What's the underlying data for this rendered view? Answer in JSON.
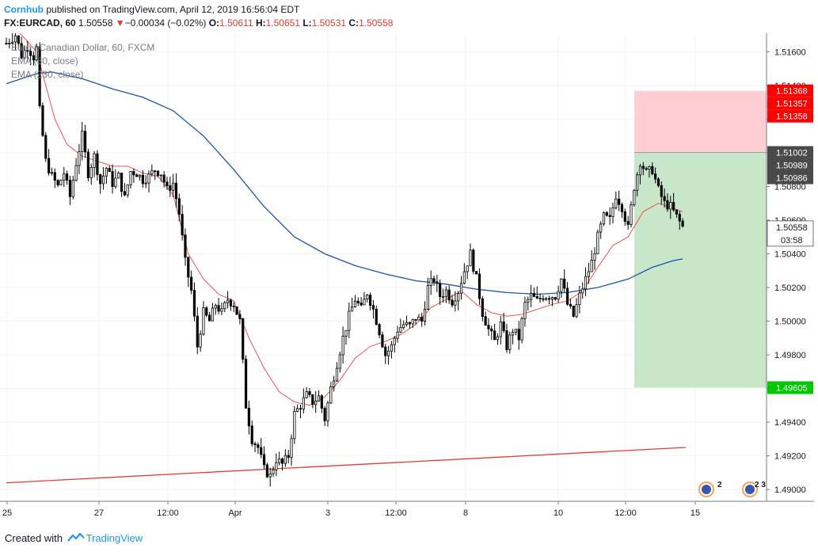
{
  "header": {
    "brand": "Cornhub",
    "published_text": "published on TradingView.com, April 12, 2019 16:56:04 EDT",
    "symbol": "FX:EURCAD, 60",
    "last": "1.50558",
    "change_arrow": "▼",
    "change": "−0.00034 (−0.02%)",
    "o_label": "O:",
    "o_value": "1.50611",
    "h_label": "H:",
    "h_value": "1.50651",
    "l_label": "L:",
    "l_value": "1.50531",
    "c_label": "C:",
    "c_value": "1.50558"
  },
  "legend": {
    "instrument": "Euro / Canadian Dollar, 60, FXCM",
    "ema_fast": "EMA (30, close)",
    "ema_slow": "EMA (230, close)"
  },
  "footer": {
    "created_with": "Created with",
    "tradingview": "TradingView"
  },
  "colors": {
    "candle": "#000000",
    "ema_fast": "#ef5350",
    "ema_slow": "#1e53a5",
    "trendline": "#e53935",
    "stop_zone": "#ffcdd2",
    "target_zone": "#c8e6c9",
    "price_tag_red": "#ff0000",
    "price_tag_green": "#00c800",
    "price_tag_dark": "#4a4a4a"
  },
  "chart_data": {
    "type": "candlestick",
    "y_ticks": [
      "1.51600",
      "1.51400",
      "1.51200",
      "1.51000",
      "1.50800",
      "1.50600",
      "1.50400",
      "1.50200",
      "1.50000",
      "1.49800",
      "1.49600",
      "1.49400",
      "1.49200",
      "1.49000"
    ],
    "x_ticks": [
      "25",
      "27",
      "12:00",
      "Apr",
      "3",
      "12:00",
      "8",
      "10",
      "12:00",
      "15"
    ],
    "ylim": [
      1.4893,
      1.5171
    ],
    "price_tags": {
      "stop_1": "1.51368",
      "stop_2": "1.51357",
      "stop_3": "1.51358",
      "entry_1": "1.51002",
      "entry_2": "1.50989",
      "entry_3": "1.50986",
      "last": "1.50558",
      "countdown": "03:58",
      "target": "1.49605"
    },
    "position": {
      "entry": 1.51002,
      "stop": 1.51368,
      "target": 1.49605
    },
    "price_path": [
      [
        0,
        1.5165
      ],
      [
        3,
        1.517
      ],
      [
        5,
        1.5158
      ],
      [
        7,
        1.5163
      ],
      [
        9,
        1.5157
      ],
      [
        10,
        1.5162
      ],
      [
        11,
        1.5125
      ],
      [
        13,
        1.5095
      ],
      [
        15,
        1.5086
      ],
      [
        17,
        1.508
      ],
      [
        19,
        1.5088
      ],
      [
        21,
        1.5074
      ],
      [
        23,
        1.5094
      ],
      [
        25,
        1.511
      ],
      [
        27,
        1.5088
      ],
      [
        29,
        1.5098
      ],
      [
        31,
        1.5082
      ],
      [
        33,
        1.5091
      ],
      [
        35,
        1.5082
      ],
      [
        37,
        1.5086
      ],
      [
        39,
        1.5073
      ],
      [
        41,
        1.5089
      ],
      [
        43,
        1.5088
      ],
      [
        45,
        1.5084
      ],
      [
        47,
        1.5086
      ],
      [
        49,
        1.509
      ],
      [
        51,
        1.5088
      ],
      [
        53,
        1.5078
      ],
      [
        55,
        1.5082
      ],
      [
        57,
        1.5064
      ],
      [
        59,
        1.5035
      ],
      [
        61,
        1.5018
      ],
      [
        63,
        1.4985
      ],
      [
        65,
        1.5005
      ],
      [
        67,
        1.5
      ],
      [
        69,
        1.501
      ],
      [
        71,
        1.5005
      ],
      [
        73,
        1.5013
      ],
      [
        75,
        1.501
      ],
      [
        77,
        1.5
      ],
      [
        79,
        1.495
      ],
      [
        81,
        1.493
      ],
      [
        83,
        1.4925
      ],
      [
        85,
        1.4912
      ],
      [
        87,
        1.4908
      ],
      [
        89,
        1.4918
      ],
      [
        91,
        1.4915
      ],
      [
        93,
        1.492
      ],
      [
        95,
        1.4945
      ],
      [
        97,
        1.495
      ],
      [
        99,
        1.4956
      ],
      [
        101,
        1.4952
      ],
      [
        103,
        1.4955
      ],
      [
        105,
        1.4942
      ],
      [
        107,
        1.496
      ],
      [
        109,
        1.4975
      ],
      [
        111,
        1.499
      ],
      [
        113,
        1.5003
      ],
      [
        115,
        1.5013
      ],
      [
        117,
        1.5007
      ],
      [
        119,
        1.5017
      ],
      [
        121,
        1.5007
      ],
      [
        123,
        1.4994
      ],
      [
        125,
        1.498
      ],
      [
        127,
        1.4985
      ],
      [
        129,
        1.4995
      ],
      [
        131,
        1.4998
      ],
      [
        133,
        1.4997
      ],
      [
        135,
        1.5002
      ],
      [
        137,
        1.5
      ],
      [
        139,
        1.502
      ],
      [
        141,
        1.5025
      ],
      [
        143,
        1.5015
      ],
      [
        145,
        1.5018
      ],
      [
        147,
        1.5012
      ],
      [
        149,
        1.5018
      ],
      [
        151,
        1.503
      ],
      [
        153,
        1.504
      ],
      [
        155,
        1.5025
      ],
      [
        157,
        1.5005
      ],
      [
        159,
        1.4995
      ],
      [
        161,
        1.4988
      ],
      [
        163,
        1.4998
      ],
      [
        165,
        1.4985
      ],
      [
        167,
        1.4995
      ],
      [
        169,
        1.499
      ],
      [
        171,
        1.501
      ],
      [
        173,
        1.5015
      ],
      [
        175,
        1.5012
      ],
      [
        177,
        1.5015
      ],
      [
        179,
        1.5015
      ],
      [
        181,
        1.5015
      ],
      [
        183,
        1.5025
      ],
      [
        185,
        1.501
      ],
      [
        187,
        1.5003
      ],
      [
        189,
        1.5015
      ],
      [
        191,
        1.5025
      ],
      [
        193,
        1.5035
      ],
      [
        195,
        1.505
      ],
      [
        197,
        1.5062
      ],
      [
        199,
        1.506
      ],
      [
        201,
        1.5075
      ],
      [
        203,
        1.5068
      ],
      [
        205,
        1.5055
      ],
      [
        207,
        1.508
      ],
      [
        209,
        1.5095
      ],
      [
        211,
        1.5088
      ],
      [
        213,
        1.509
      ],
      [
        215,
        1.5078
      ],
      [
        217,
        1.507
      ],
      [
        219,
        1.5068
      ],
      [
        221,
        1.5062
      ],
      [
        223,
        1.5056
      ]
    ],
    "ema_fast_path": [
      [
        0,
        1.518
      ],
      [
        10,
        1.516
      ],
      [
        16,
        1.512
      ],
      [
        20,
        1.5105
      ],
      [
        25,
        1.5098
      ],
      [
        30,
        1.5095
      ],
      [
        35,
        1.5092
      ],
      [
        40,
        1.5092
      ],
      [
        45,
        1.5088
      ],
      [
        50,
        1.5086
      ],
      [
        55,
        1.5075
      ],
      [
        60,
        1.504
      ],
      [
        65,
        1.5025
      ],
      [
        70,
        1.5016
      ],
      [
        75,
        1.5012
      ],
      [
        80,
        1.499
      ],
      [
        85,
        1.4972
      ],
      [
        90,
        1.4958
      ],
      [
        95,
        1.4952
      ],
      [
        100,
        1.495
      ],
      [
        105,
        1.4955
      ],
      [
        110,
        1.4965
      ],
      [
        115,
        1.4978
      ],
      [
        120,
        1.4985
      ],
      [
        125,
        1.4988
      ],
      [
        130,
        1.4992
      ],
      [
        135,
        1.4998
      ],
      [
        140,
        1.5008
      ],
      [
        145,
        1.5013
      ],
      [
        150,
        1.5018
      ],
      [
        155,
        1.501
      ],
      [
        160,
        1.5005
      ],
      [
        165,
        1.5003
      ],
      [
        170,
        1.5004
      ],
      [
        175,
        1.5007
      ],
      [
        180,
        1.501
      ],
      [
        185,
        1.5012
      ],
      [
        190,
        1.5018
      ],
      [
        195,
        1.5032
      ],
      [
        200,
        1.5045
      ],
      [
        205,
        1.505
      ],
      [
        210,
        1.5065
      ],
      [
        215,
        1.507
      ],
      [
        220,
        1.5067
      ],
      [
        223,
        1.5065
      ]
    ],
    "ema_slow_path": [
      [
        0,
        1.5141
      ],
      [
        10,
        1.5147
      ],
      [
        15,
        1.5148
      ],
      [
        25,
        1.5144
      ],
      [
        35,
        1.5138
      ],
      [
        45,
        1.5133
      ],
      [
        55,
        1.5125
      ],
      [
        65,
        1.511
      ],
      [
        75,
        1.509
      ],
      [
        85,
        1.5068
      ],
      [
        95,
        1.505
      ],
      [
        105,
        1.504
      ],
      [
        115,
        1.5033
      ],
      [
        125,
        1.5028
      ],
      [
        135,
        1.5024
      ],
      [
        145,
        1.5022
      ],
      [
        155,
        1.5019
      ],
      [
        165,
        1.5017
      ],
      [
        175,
        1.5016
      ],
      [
        185,
        1.5017
      ],
      [
        195,
        1.502
      ],
      [
        205,
        1.5025
      ],
      [
        213,
        1.5032
      ],
      [
        220,
        1.5036
      ],
      [
        223,
        1.5037
      ]
    ],
    "trendline": [
      [
        0,
        1.4904
      ],
      [
        224,
        1.4925
      ]
    ]
  }
}
